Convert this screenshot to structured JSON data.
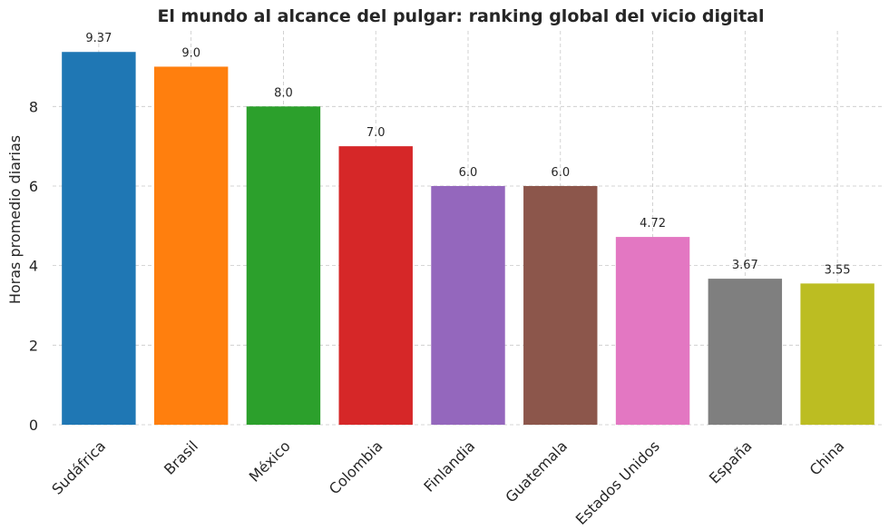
{
  "chart_data": {
    "type": "bar",
    "title": "El mundo al alcance del pulgar: ranking global del vicio digital",
    "xlabel": "",
    "ylabel": "Horas promedio diarias",
    "ylim": [
      0,
      9.9
    ],
    "yticks": [
      0,
      2,
      4,
      6,
      8
    ],
    "grid": true,
    "categories": [
      "Sudáfrica",
      "Brasil",
      "México",
      "Colombia",
      "Finlandia",
      "Guatemala",
      "Estados Unidos",
      "España",
      "China"
    ],
    "values": [
      9.37,
      9.0,
      8.0,
      7.0,
      6.0,
      6.0,
      4.72,
      3.67,
      3.55
    ],
    "value_labels": [
      "9.37",
      "9.0",
      "8.0",
      "7.0",
      "6.0",
      "6.0",
      "4.72",
      "3.67",
      "3.55"
    ],
    "colors": [
      "#1f77b4",
      "#ff7f0e",
      "#2ca02c",
      "#d62728",
      "#9467bd",
      "#8c564b",
      "#e377c2",
      "#7f7f7f",
      "#bcbd22"
    ]
  }
}
